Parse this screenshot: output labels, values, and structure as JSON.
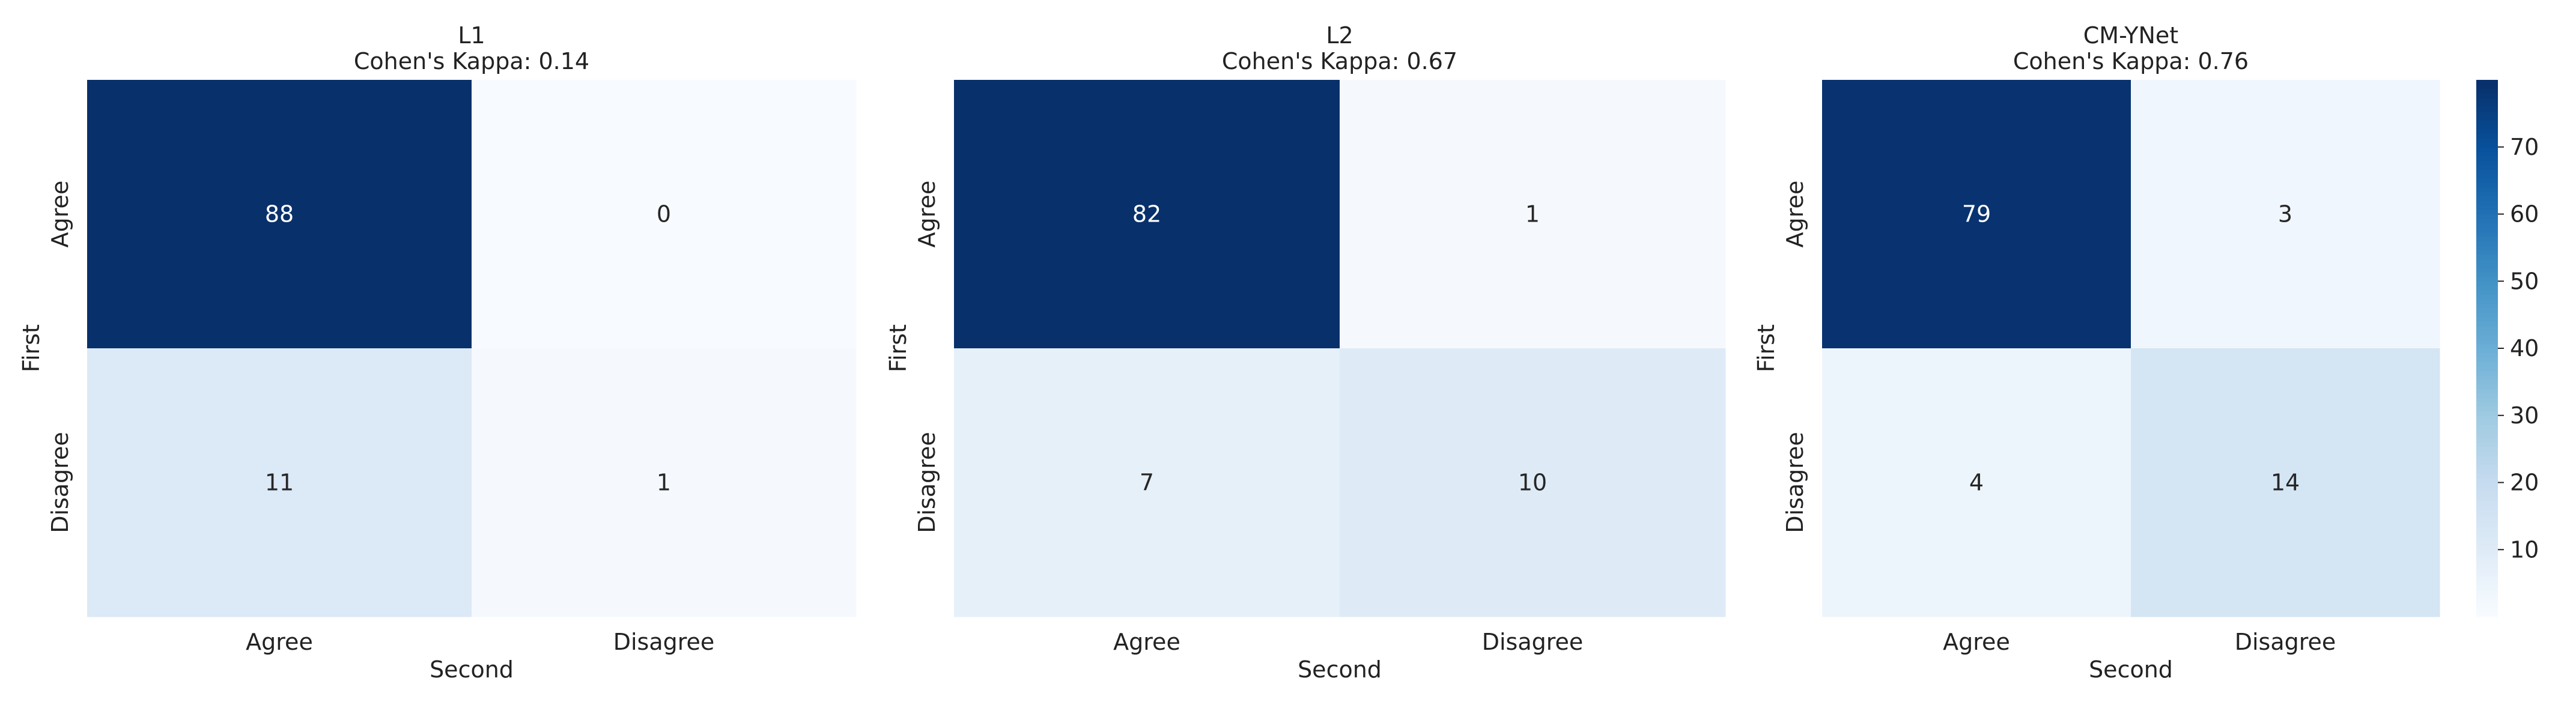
{
  "chart_data": [
    {
      "type": "heatmap",
      "title": "L1",
      "subtitle": "Cohen's Kappa: 0.14",
      "xlabel": "Second",
      "ylabel": "First",
      "x_categories": [
        "Agree",
        "Disagree"
      ],
      "y_categories": [
        "Agree",
        "Disagree"
      ],
      "values": [
        [
          88,
          0
        ],
        [
          11,
          1
        ]
      ]
    },
    {
      "type": "heatmap",
      "title": "L2",
      "subtitle": "Cohen's Kappa: 0.67",
      "xlabel": "Second",
      "ylabel": "First",
      "x_categories": [
        "Agree",
        "Disagree"
      ],
      "y_categories": [
        "Agree",
        "Disagree"
      ],
      "values": [
        [
          82,
          1
        ],
        [
          7,
          10
        ]
      ]
    },
    {
      "type": "heatmap",
      "title": "CM-YNet",
      "subtitle": "Cohen's Kappa: 0.76",
      "xlabel": "Second",
      "ylabel": "First",
      "x_categories": [
        "Agree",
        "Disagree"
      ],
      "y_categories": [
        "Agree",
        "Disagree"
      ],
      "values": [
        [
          79,
          3
        ],
        [
          4,
          14
        ]
      ]
    }
  ],
  "colorbar": {
    "colormap": "Blues",
    "range": [
      0,
      80
    ],
    "ticks": [
      10,
      20,
      30,
      40,
      50,
      60,
      70
    ],
    "low_color": "#f7fbff",
    "high_color": "#08306b"
  }
}
